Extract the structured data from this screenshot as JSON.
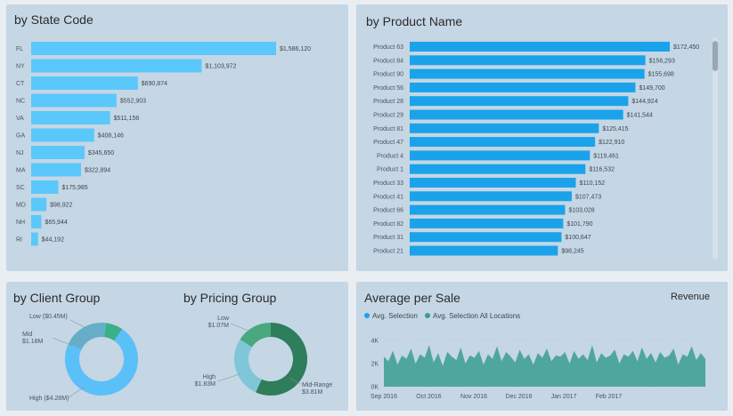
{
  "panels": {
    "state": {
      "title": "by State Code"
    },
    "product": {
      "title": "by Product Name"
    },
    "client": {
      "title": "by Client Group"
    },
    "pricing": {
      "title": "by Pricing Group"
    },
    "avg": {
      "title": "Average per Sale",
      "right_label": "Revenue",
      "legend": [
        "Avg. Selection",
        "Avg. Selection All Locations"
      ]
    }
  },
  "colors": {
    "bar_state": "#5ac8fa",
    "bar_product": "#1aa3ea",
    "teal": "#3a9e92",
    "light_blue": "#5bc0f7",
    "dark_green": "#2e7d5b",
    "light_teal": "#7ec6d8"
  },
  "chart_data": [
    {
      "type": "bar",
      "orientation": "horizontal",
      "title": "by State Code",
      "categories": [
        "FL",
        "NY",
        "CT",
        "NC",
        "VA",
        "GA",
        "NJ",
        "MA",
        "SC",
        "MD",
        "NH",
        "RI"
      ],
      "values": [
        1586120,
        1103972,
        690874,
        552903,
        511156,
        408146,
        345650,
        322894,
        175985,
        98922,
        65944,
        44192
      ],
      "labels": [
        "$1,586,120",
        "$1,103,972",
        "$690,874",
        "$552,903",
        "$511,156",
        "$408,146",
        "$345,650",
        "$322,894",
        "$175,985",
        "$98,922",
        "$65,944",
        "$44,192"
      ]
    },
    {
      "type": "bar",
      "orientation": "horizontal",
      "title": "by Product Name",
      "categories": [
        "Product 63",
        "Product 84",
        "Product 90",
        "Product 56",
        "Product 28",
        "Product 29",
        "Product 81",
        "Product 47",
        "Product 4",
        "Product 1",
        "Product 33",
        "Product 41",
        "Product 66",
        "Product 82",
        "Product 31",
        "Product 21"
      ],
      "values": [
        172450,
        156293,
        155698,
        149700,
        144924,
        141544,
        125415,
        122910,
        119461,
        116532,
        110152,
        107473,
        103028,
        101790,
        100647,
        98245
      ],
      "labels": [
        "$172,450",
        "$156,293",
        "$155,698",
        "$149,700",
        "$144,924",
        "$141,544",
        "$125,415",
        "$122,910",
        "$119,461",
        "$116,532",
        "$110,152",
        "$107,473",
        "$103,028",
        "$101,790",
        "$100,647",
        "$98,245"
      ]
    },
    {
      "type": "pie",
      "title": "by Client Group",
      "slices": [
        {
          "name": "High",
          "value": 4.28,
          "label": "High ($4.28M)",
          "color": "#5bc0f7"
        },
        {
          "name": "Mid",
          "value": 1.18,
          "label": "Mid\n$1.18M",
          "color": "#66aec8"
        },
        {
          "name": "Low",
          "value": 0.45,
          "label": "Low ($0.45M)",
          "color": "#3ab089"
        }
      ]
    },
    {
      "type": "pie",
      "title": "by Pricing Group",
      "slices": [
        {
          "name": "Mid-Range",
          "value": 3.81,
          "label": "Mid-Range\n$3.81M",
          "color": "#2e7d5b"
        },
        {
          "name": "High",
          "value": 1.83,
          "label": "High\n$1.83M",
          "color": "#7ec6d8"
        },
        {
          "name": "Low",
          "value": 1.07,
          "label": "Low\n$1.07M",
          "color": "#49a87d"
        }
      ]
    },
    {
      "type": "area",
      "title": "Average per Sale",
      "ylabels": [
        "4K",
        "2K",
        "0K"
      ],
      "yticks": [
        4000,
        2000,
        0
      ],
      "ylim": [
        0,
        4000
      ],
      "xlabels": [
        "Sep 2016",
        "Oct 2016",
        "Nov 2016",
        "Dec 2016",
        "Jan 2017",
        "Feb 2017"
      ],
      "x_range": [
        "2016-09-01",
        "2017-03-01"
      ],
      "series": [
        {
          "name": "Avg. Selection All Locations",
          "values": [
            2600,
            2200,
            3100,
            1900,
            2700,
            2400,
            3300,
            2000,
            2800,
            2500,
            3600,
            2100,
            2900,
            1800,
            3000,
            2600,
            2300,
            3400,
            2000,
            2700,
            2500,
            3100,
            1900,
            2800,
            2400,
            3500,
            2200,
            3000,
            2600,
            2100,
            3200,
            2400,
            2800,
            1900,
            2900,
            2500,
            3300,
            2200,
            2700,
            2600,
            3000,
            2000,
            3100,
            2400,
            2800,
            2300,
            3600,
            2100,
            2900,
            2500,
            2700,
            3200,
            2000,
            2800,
            2600,
            3100,
            2200,
            3400,
            2400,
            2900,
            2100,
            3000,
            2500,
            2700,
            3300,
            1900,
            2800,
            2600,
            3500,
            2300,
            2900,
            2400
          ]
        }
      ]
    }
  ]
}
